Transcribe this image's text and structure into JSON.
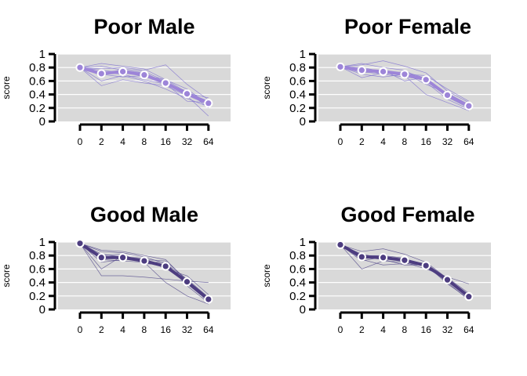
{
  "chart_data": [
    {
      "type": "line",
      "title": "Poor Male",
      "ylabel": "score",
      "xlabel": "",
      "categories": [
        "0",
        "2",
        "4",
        "8",
        "16",
        "32",
        "64"
      ],
      "ylim": [
        0,
        1
      ],
      "yticks": [
        "0",
        "0.2",
        "0.4",
        "0.6",
        "0.8",
        "1"
      ],
      "grid": true,
      "mean_series": {
        "values": [
          0.8,
          0.71,
          0.74,
          0.69,
          0.57,
          0.41,
          0.27
        ]
      },
      "individual_series": [
        {
          "values": [
            0.8,
            0.86,
            0.82,
            0.78,
            0.62,
            0.43,
            0.3
          ]
        },
        {
          "values": [
            0.8,
            0.78,
            0.8,
            0.76,
            0.84,
            0.55,
            0.32
          ]
        },
        {
          "values": [
            0.8,
            0.6,
            0.68,
            0.6,
            0.48,
            0.34,
            0.22
          ]
        },
        {
          "values": [
            0.8,
            0.53,
            0.62,
            0.57,
            0.53,
            0.38,
            0.08
          ]
        },
        {
          "values": [
            0.8,
            0.73,
            0.7,
            0.62,
            0.55,
            0.45,
            0.2
          ]
        },
        {
          "values": [
            0.8,
            0.68,
            0.78,
            0.74,
            0.6,
            0.42,
            0.35
          ]
        },
        {
          "values": [
            0.8,
            0.76,
            0.72,
            0.71,
            0.56,
            0.3,
            0.28
          ]
        },
        {
          "values": [
            0.8,
            0.7,
            0.66,
            0.68,
            0.62,
            0.48,
            0.25
          ]
        },
        {
          "values": [
            0.8,
            0.82,
            0.76,
            0.72,
            0.58,
            0.38,
            0.29
          ]
        }
      ]
    },
    {
      "type": "line",
      "title": "Poor Female",
      "ylabel": "score",
      "xlabel": "",
      "categories": [
        "0",
        "2",
        "4",
        "8",
        "16",
        "32",
        "64"
      ],
      "ylim": [
        0,
        1
      ],
      "yticks": [
        "0",
        "0.2",
        "0.4",
        "0.6",
        "0.8",
        "1"
      ],
      "grid": true,
      "mean_series": {
        "values": [
          0.81,
          0.76,
          0.74,
          0.7,
          0.62,
          0.39,
          0.23
        ]
      },
      "individual_series": [
        {
          "values": [
            0.81,
            0.84,
            0.9,
            0.82,
            0.72,
            0.45,
            0.28
          ]
        },
        {
          "values": [
            0.81,
            0.65,
            0.72,
            0.68,
            0.4,
            0.28,
            0.16
          ]
        },
        {
          "values": [
            0.81,
            0.78,
            0.7,
            0.66,
            0.62,
            0.4,
            0.22
          ]
        },
        {
          "values": [
            0.81,
            0.72,
            0.76,
            0.6,
            0.66,
            0.36,
            0.2
          ]
        },
        {
          "values": [
            0.81,
            0.8,
            0.74,
            0.72,
            0.55,
            0.42,
            0.25
          ]
        },
        {
          "values": [
            0.81,
            0.7,
            0.66,
            0.7,
            0.68,
            0.48,
            0.3
          ]
        },
        {
          "values": [
            0.81,
            0.86,
            0.8,
            0.76,
            0.58,
            0.33,
            0.18
          ]
        },
        {
          "values": [
            0.81,
            0.74,
            0.7,
            0.74,
            0.64,
            0.37,
            0.24
          ]
        }
      ]
    },
    {
      "type": "line",
      "title": "Good Male",
      "ylabel": "score",
      "xlabel": "",
      "categories": [
        "0",
        "2",
        "4",
        "8",
        "16",
        "32",
        "64"
      ],
      "ylim": [
        0,
        1
      ],
      "yticks": [
        "0",
        "0.2",
        "0.4",
        "0.6",
        "0.8",
        "1"
      ],
      "grid": true,
      "mean_series": {
        "values": [
          0.98,
          0.77,
          0.77,
          0.72,
          0.64,
          0.41,
          0.15
        ]
      },
      "individual_series": [
        {
          "values": [
            0.98,
            0.5,
            0.5,
            0.48,
            0.45,
            0.42,
            0.4
          ]
        },
        {
          "values": [
            0.98,
            0.6,
            0.8,
            0.7,
            0.4,
            0.2,
            0.08
          ]
        },
        {
          "values": [
            0.98,
            0.86,
            0.84,
            0.78,
            0.68,
            0.45,
            0.18
          ]
        },
        {
          "values": [
            0.98,
            0.74,
            0.72,
            0.7,
            0.7,
            0.35,
            0.1
          ]
        },
        {
          "values": [
            0.98,
            0.82,
            0.78,
            0.76,
            0.6,
            0.5,
            0.22
          ]
        },
        {
          "values": [
            0.98,
            0.8,
            0.82,
            0.68,
            0.66,
            0.38,
            0.12
          ]
        },
        {
          "values": [
            0.98,
            0.7,
            0.74,
            0.74,
            0.72,
            0.44,
            0.14
          ]
        },
        {
          "values": [
            0.98,
            0.88,
            0.86,
            0.8,
            0.74,
            0.42,
            0.16
          ]
        }
      ]
    },
    {
      "type": "line",
      "title": "Good Female",
      "ylabel": "score",
      "xlabel": "",
      "categories": [
        "0",
        "2",
        "4",
        "8",
        "16",
        "32",
        "64"
      ],
      "ylim": [
        0,
        1
      ],
      "yticks": [
        "0",
        "0.2",
        "0.4",
        "0.6",
        "0.8",
        "1"
      ],
      "grid": true,
      "mean_series": {
        "values": [
          0.96,
          0.78,
          0.77,
          0.73,
          0.65,
          0.44,
          0.19
        ]
      },
      "individual_series": [
        {
          "values": [
            0.96,
            0.6,
            0.72,
            0.7,
            0.6,
            0.48,
            0.38
          ]
        },
        {
          "values": [
            0.96,
            0.86,
            0.9,
            0.82,
            0.7,
            0.46,
            0.22
          ]
        },
        {
          "values": [
            0.96,
            0.74,
            0.66,
            0.68,
            0.66,
            0.4,
            0.14
          ]
        },
        {
          "values": [
            0.96,
            0.8,
            0.8,
            0.76,
            0.62,
            0.44,
            0.2
          ]
        },
        {
          "values": [
            0.96,
            0.82,
            0.76,
            0.72,
            0.68,
            0.42,
            0.18
          ]
        },
        {
          "values": [
            0.96,
            0.72,
            0.78,
            0.74,
            0.64,
            0.47,
            0.24
          ]
        },
        {
          "values": [
            0.96,
            0.78,
            0.74,
            0.66,
            0.66,
            0.38,
            0.16
          ]
        }
      ]
    }
  ],
  "colors": {
    "panel_background": "#d9d9d9",
    "grid": "#ffffff",
    "poor_mean": "#9d85d8",
    "poor_individual": "#7a6ad0",
    "good_mean": "#4d3d80",
    "good_individual": "#4a3f86",
    "point_stroke": "#ffffff"
  }
}
